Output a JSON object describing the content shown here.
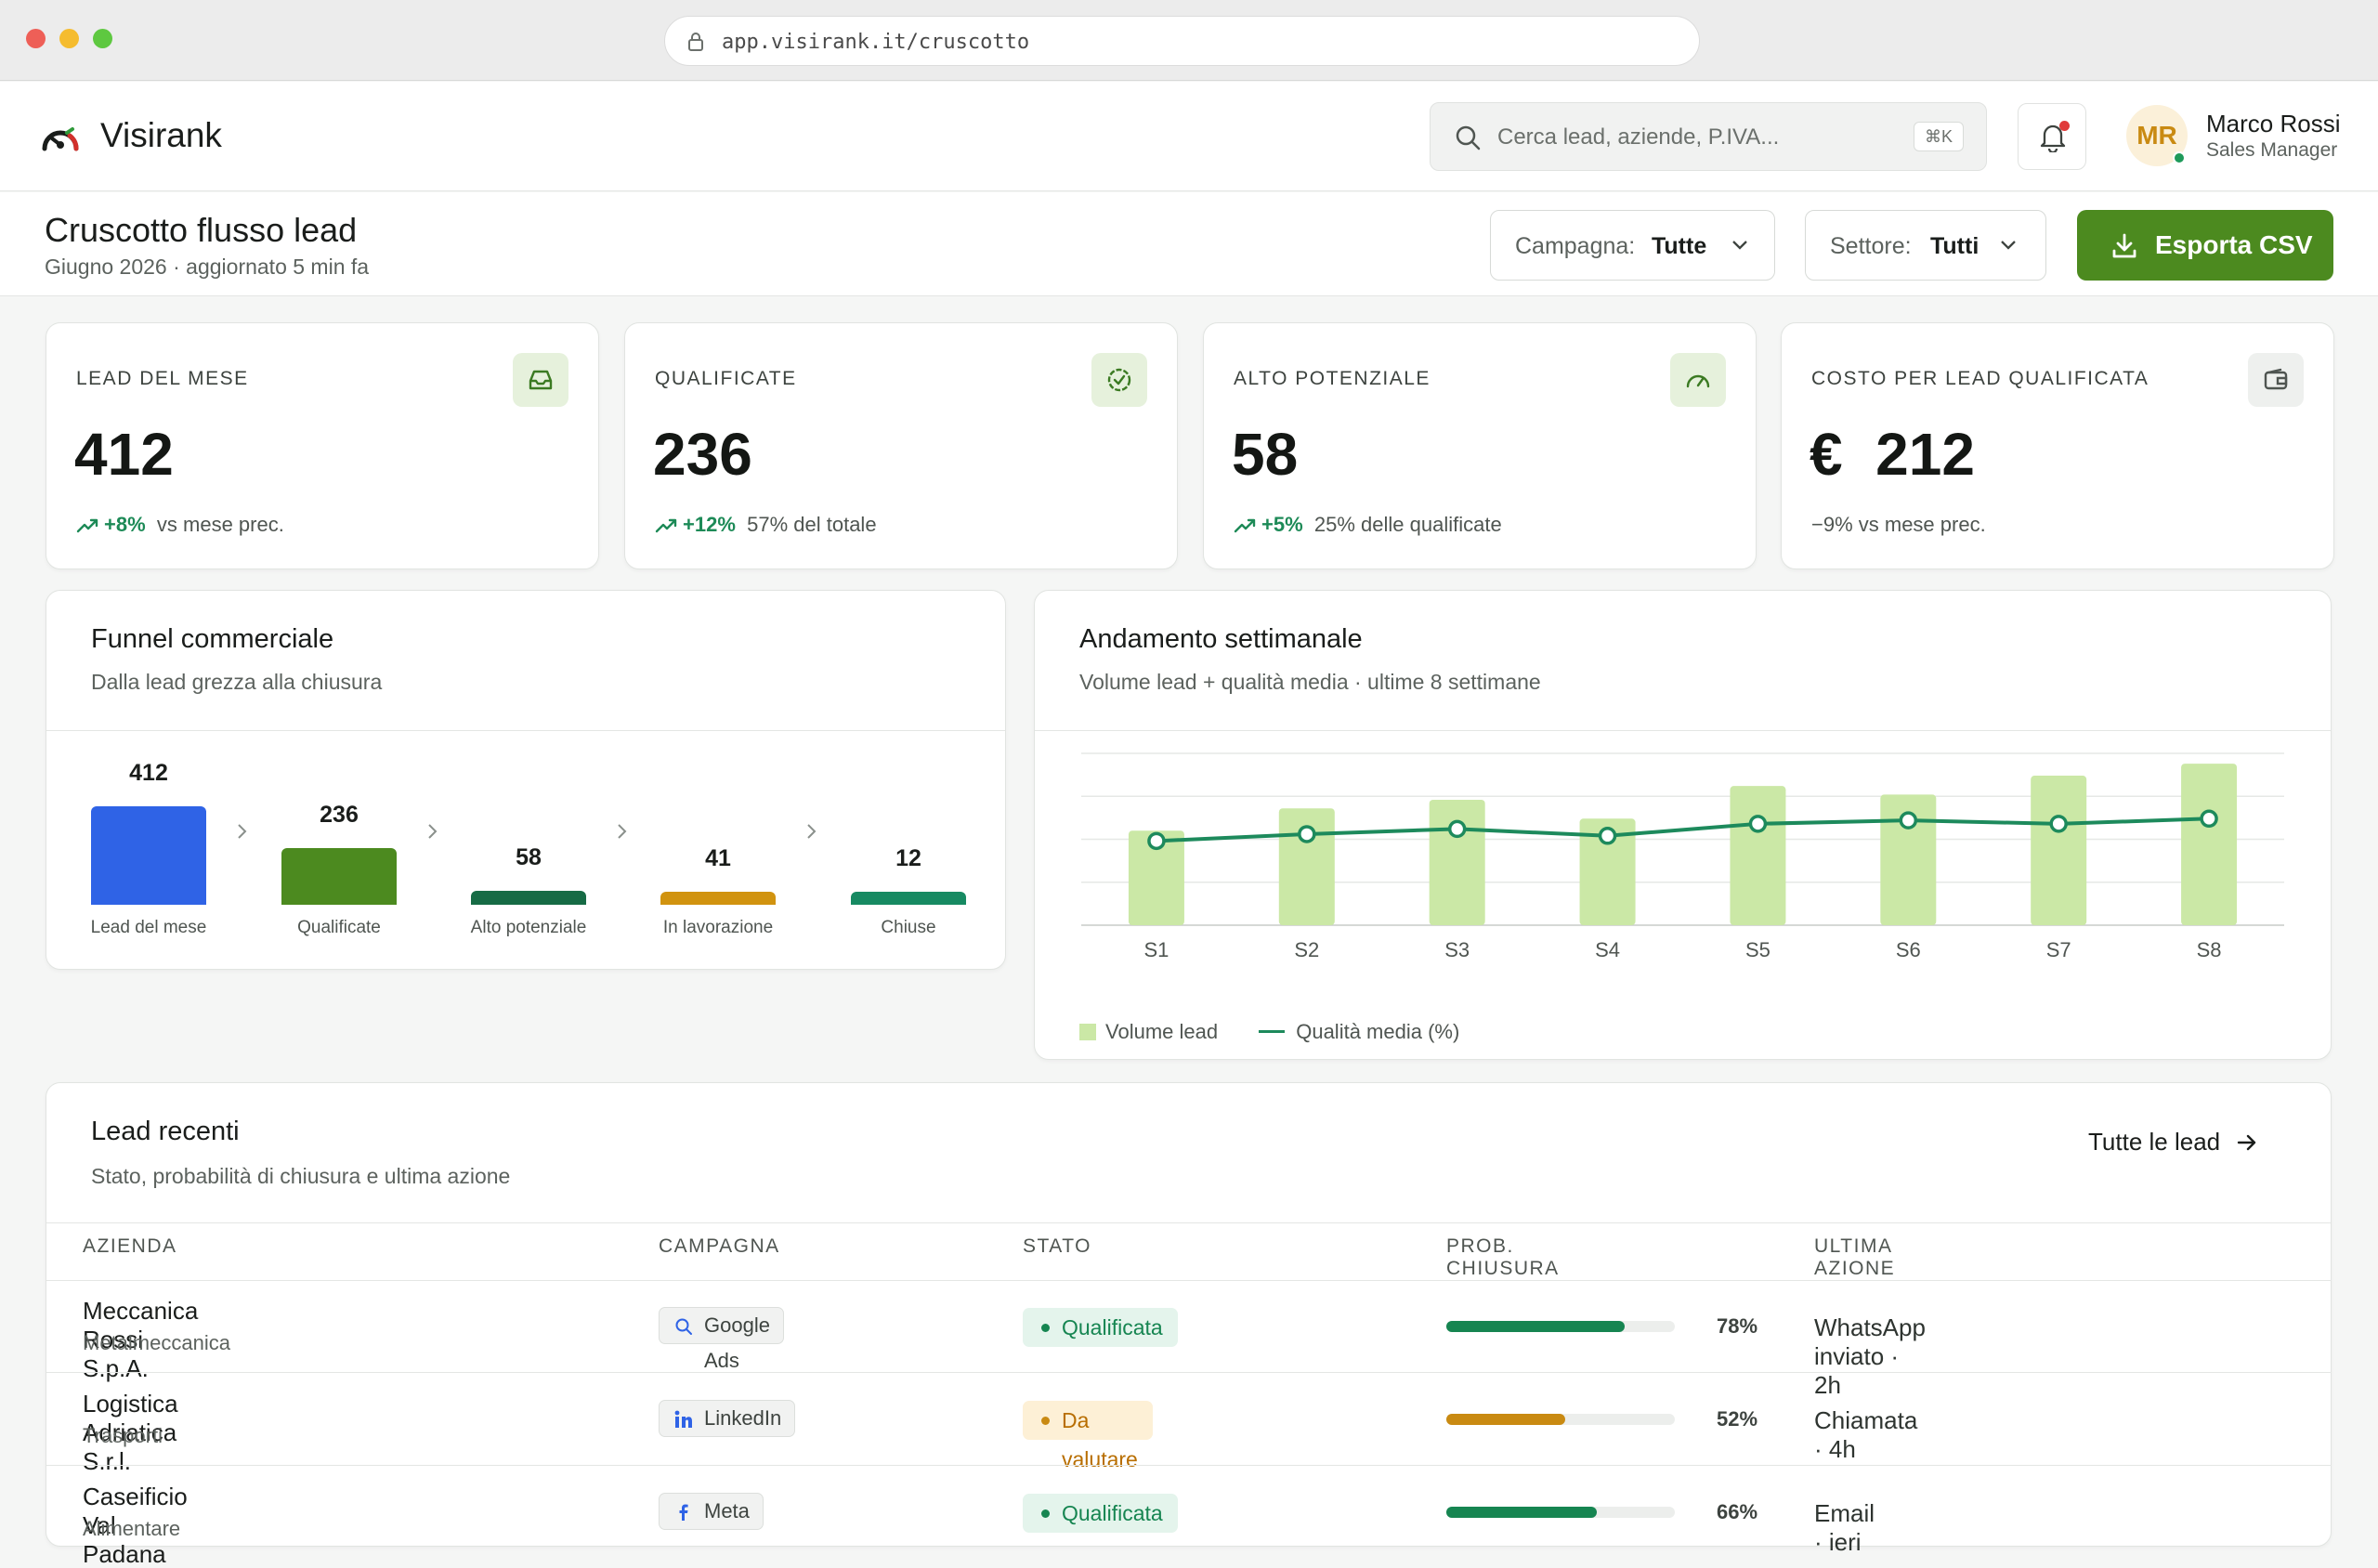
{
  "browser": {
    "url": "app.visirank.it/cruscotto"
  },
  "app": {
    "brand": "Visirank",
    "search_placeholder": "Cerca lead, aziende, P.IVA...",
    "search_shortcut": "⌘K",
    "user": {
      "initials": "MR",
      "name": "Marco Rossi",
      "role": "Sales Manager"
    }
  },
  "page": {
    "title": "Cruscotto flusso lead",
    "subtitle": "Giugno 2026 · aggiornato 5 min fa",
    "filters": [
      {
        "label": "Campagna:",
        "value": "Tutte"
      },
      {
        "label": "Settore:",
        "value": "Tutti"
      }
    ],
    "export_label": "Esporta CSV"
  },
  "kpis": [
    {
      "label": "LEAD DEL MESE",
      "value": "412",
      "delta": "+8%",
      "note": "vs mese prec.",
      "icon": "inbox-icon"
    },
    {
      "label": "QUALIFICATE",
      "value": "236",
      "delta": "+12%",
      "note": "57% del totale",
      "icon": "check-badge-icon"
    },
    {
      "label": "ALTO POTENZIALE",
      "value": "58",
      "delta": "+5%",
      "note": "25% delle qualificate",
      "icon": "gauge-icon"
    },
    {
      "label": "COSTO PER LEAD QUALIFICATA",
      "value": "€  212",
      "delta": "",
      "note": "−9% vs mese prec.",
      "icon": "wallet-icon"
    }
  ],
  "funnel": {
    "title": "Funnel commerciale",
    "subtitle": "Dalla lead grezza alla chiusura",
    "stages": [
      {
        "label": "Lead del mese",
        "value": 412,
        "color": "#2f63e6"
      },
      {
        "label": "Qualificate",
        "value": 236,
        "color": "#4c8a1f"
      },
      {
        "label": "Alto potenziale",
        "value": 58,
        "color": "#166b45"
      },
      {
        "label": "In lavorazione",
        "value": 41,
        "color": "#d1930f"
      },
      {
        "label": "Chiuse",
        "value": 12,
        "color": "#178a62"
      }
    ]
  },
  "weekly": {
    "title": "Andamento settimanale",
    "subtitle": "Volume lead + qualità media · ultime 8 settimane",
    "legend": {
      "bars": "Volume lead",
      "line": "Qualità media (%)"
    }
  },
  "chart_data": {
    "type": "bar",
    "categories": [
      "S1",
      "S2",
      "S3",
      "S4",
      "S5",
      "S6",
      "S7",
      "S8"
    ],
    "series": [
      {
        "name": "Volume lead",
        "type": "bar",
        "color": "#cbe8a6",
        "values": [
          55,
          68,
          73,
          62,
          81,
          76,
          87,
          94
        ]
      },
      {
        "name": "Qualità media (%)",
        "type": "line",
        "color": "#1d8a5c",
        "values": [
          49,
          53,
          56,
          52,
          59,
          61,
          59,
          62
        ]
      }
    ],
    "ylim": [
      0,
      100
    ],
    "grid": true,
    "legend": "bottom-left"
  },
  "recent": {
    "title": "Lead recenti",
    "subtitle": "Stato, probabilità di chiusura e ultima azione",
    "all_link": "Tutte le lead",
    "columns": [
      "AZIENDA",
      "CAMPAGNA",
      "STATO",
      "PROB. CHIUSURA",
      "ULTIMA AZIONE"
    ],
    "rows": [
      {
        "company": "Meccanica Rossi S.p.A.",
        "sector": "Metalmeccanica",
        "campaign": "Google Ads",
        "campaign_icon": "search-icon",
        "status": "Qualificata",
        "status_kind": "q",
        "prob": 78,
        "prob_label": "78%",
        "prob_color": "#168551",
        "action": "WhatsApp inviato · 2h"
      },
      {
        "company": "Logistica Adriatica S.r.l.",
        "sector": "Trasporti",
        "campaign": "LinkedIn",
        "campaign_icon": "linkedin-icon",
        "status": "Da valutare",
        "status_kind": "v",
        "prob": 52,
        "prob_label": "52%",
        "prob_color": "#c98a12",
        "action": "Chiamata · 4h"
      },
      {
        "company": "Caseificio Val Padana",
        "sector": "Alimentare",
        "campaign": "Meta",
        "campaign_icon": "meta-icon",
        "status": "Qualificata",
        "status_kind": "q",
        "prob": 66,
        "prob_label": "66%",
        "prob_color": "#168551",
        "action": "Email · ieri"
      }
    ]
  }
}
